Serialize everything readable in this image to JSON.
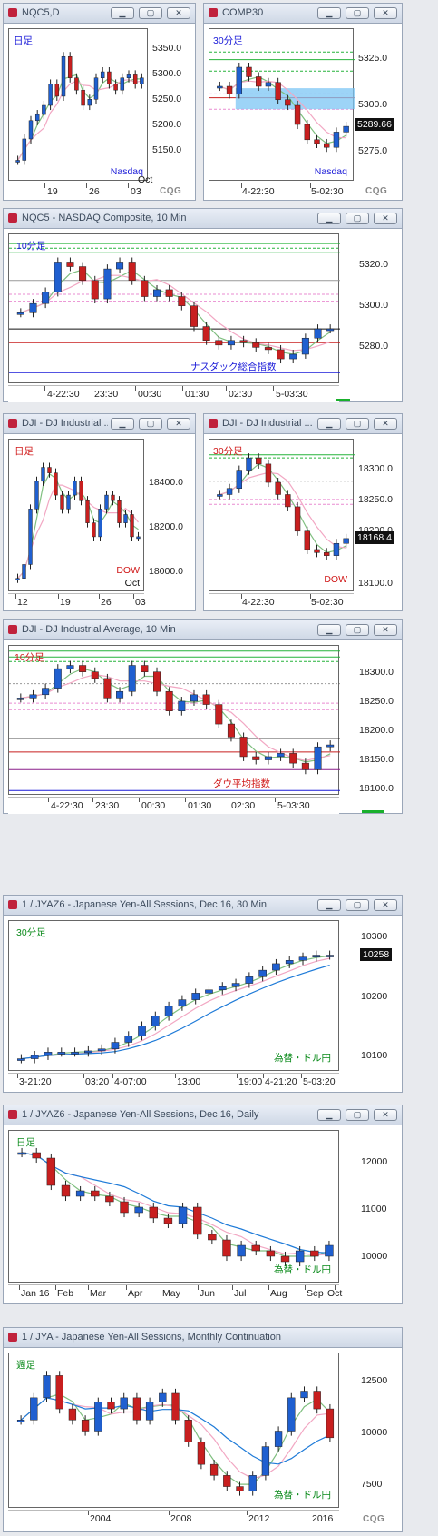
{
  "panels": [
    {
      "title": "NQC5,D",
      "tag": "日足",
      "tag_color": "#1a1ad8",
      "note": "Nasdaq",
      "note_color": "#1a1ad8",
      "note2": "Oct",
      "y_ticks": [
        "5350.0",
        "5300.0",
        "5250.0",
        "5200.0",
        "5150.0"
      ],
      "x_ticks": [
        "19",
        "26",
        "03"
      ],
      "logo": "CQG"
    },
    {
      "title": "COMP30",
      "tag": "30分足",
      "tag_color": "#1a1ad8",
      "note": "Nasdaq",
      "note_color": "#1a1ad8",
      "price": "5289.66",
      "y_ticks": [
        "5325.0",
        "5300.0",
        "5275.0"
      ],
      "x_ticks": [
        "4-22:30",
        "5-02:30"
      ],
      "logo": "CQG"
    },
    {
      "title": "NQC5 - NASDAQ Composite, 10 Min",
      "tag": "10分足",
      "tag_color": "#1a1ad8",
      "note": "ナスダック総合指数",
      "note_color": "#1a1ad8",
      "y_ticks": [
        "5320.0",
        "5300.0",
        "5280.0"
      ],
      "x_ticks": [
        "4-22:30",
        "23:30",
        "00:30",
        "01:30",
        "02:30",
        "5-03:30"
      ]
    },
    {
      "title": "DJI - DJ Industrial ...",
      "tag": "日足",
      "tag_color": "#d01818",
      "note": "DOW",
      "note_color": "#d01818",
      "note2": "Oct",
      "y_ticks": [
        "18400.0",
        "18200.0",
        "18000.0"
      ],
      "x_ticks": [
        "12",
        "19",
        "26",
        "03"
      ]
    },
    {
      "title": "DJI - DJ Industrial ...",
      "tag": "30分足",
      "tag_color": "#d01818",
      "note": "DOW",
      "note_color": "#d01818",
      "price": "18168.4",
      "y_ticks": [
        "18300.0",
        "18250.0",
        "18200.0",
        "18150.0",
        "18100.0"
      ],
      "x_ticks": [
        "4-22:30",
        "5-02:30"
      ]
    },
    {
      "title": "DJI - DJ Industrial Average, 10 Min",
      "tag": "10分足",
      "tag_color": "#d01818",
      "note": "ダウ平均指数",
      "note_color": "#d01818",
      "y_ticks": [
        "18300.0",
        "18250.0",
        "18200.0",
        "18150.0",
        "18100.0"
      ],
      "x_ticks": [
        "4-22:30",
        "23:30",
        "00:30",
        "01:30",
        "02:30",
        "5-03:30"
      ]
    },
    {
      "title": "1 / JYAZ6 - Japanese Yen-All Sessions, Dec 16, 30 Min",
      "tag": "30分足",
      "tag_color": "#0a8a1a",
      "note": "為替・ドル円",
      "note_color": "#0a8a1a",
      "price": "10258",
      "y_ticks": [
        "10300",
        "10200",
        "10100"
      ],
      "x_ticks": [
        "3-21:20",
        "03:20",
        "4-07:00",
        "13:00",
        "19:00",
        "4-21:20",
        "5-03:20"
      ]
    },
    {
      "title": "1 / JYAZ6 - Japanese Yen-All Sessions, Dec 16, Daily",
      "tag": "日足",
      "tag_color": "#0a8a1a",
      "note": "為替・ドル円",
      "note_color": "#0a8a1a",
      "y_ticks": [
        "12000",
        "11000",
        "10000"
      ],
      "x_ticks": [
        "Jan 16",
        "Feb",
        "Mar",
        "Apr",
        "May",
        "Jun",
        "Jul",
        "Aug",
        "Sep",
        "Oct"
      ]
    },
    {
      "title": "1 / JYA - Japanese Yen-All Sessions, Monthly Continuation",
      "tag": "週足",
      "tag_color": "#0a8a1a",
      "note": "為替・ドル円",
      "note_color": "#0a8a1a",
      "y_ticks": [
        "12500",
        "10000",
        "7500"
      ],
      "x_ticks": [
        "2004",
        "2008",
        "2012",
        "2016"
      ],
      "logo": "CQG"
    }
  ],
  "chart_data": [
    {
      "type": "candlestick",
      "title": "NQC5,D",
      "ylim": [
        5130,
        5380
      ],
      "series": [
        {
          "name": "candles",
          "values": [
            5165,
            5200,
            5230,
            5240,
            5255,
            5290,
            5270,
            5335,
            5300,
            5280,
            5255,
            5265,
            5300,
            5310,
            5290,
            5280,
            5300,
            5305,
            5290,
            5300
          ]
        }
      ]
    },
    {
      "type": "candlestick",
      "title": "COMP30",
      "ylim": [
        5260,
        5340
      ],
      "series": [
        {
          "name": "candles",
          "values": [
            5310,
            5306,
            5320,
            5315,
            5310,
            5312,
            5303,
            5300,
            5290,
            5282,
            5280,
            5278,
            5286,
            5289
          ]
        }
      ]
    },
    {
      "type": "candlestick",
      "title": "NQC5 10 Min",
      "ylim": [
        5265,
        5330
      ],
      "series": [
        {
          "name": "candles",
          "values": [
            5296,
            5300,
            5305,
            5318,
            5316,
            5310,
            5302,
            5315,
            5318,
            5310,
            5303,
            5306,
            5303,
            5299,
            5290,
            5284,
            5282,
            5284,
            5283,
            5281,
            5280,
            5276,
            5278,
            5285,
            5289,
            5289
          ]
        }
      ]
    },
    {
      "type": "candlestick",
      "title": "DJI Daily",
      "ylim": [
        17950,
        18500
      ],
      "series": [
        {
          "name": "candles",
          "values": [
            18000,
            18050,
            18250,
            18350,
            18400,
            18380,
            18300,
            18250,
            18300,
            18350,
            18280,
            18200,
            18150,
            18250,
            18300,
            18280,
            18200,
            18230,
            18150,
            18150
          ]
        }
      ]
    },
    {
      "type": "candlestick",
      "title": "DJI 30 Min",
      "ylim": [
        18080,
        18330
      ],
      "series": [
        {
          "name": "candles",
          "values": [
            18240,
            18250,
            18280,
            18300,
            18290,
            18260,
            18240,
            18220,
            18180,
            18150,
            18145,
            18140,
            18160,
            18168
          ]
        }
      ]
    },
    {
      "type": "candlestick",
      "title": "DJI 10 Min",
      "ylim": [
        18090,
        18320
      ],
      "series": [
        {
          "name": "candles",
          "values": [
            18240,
            18245,
            18255,
            18285,
            18290,
            18280,
            18270,
            18240,
            18250,
            18290,
            18280,
            18250,
            18220,
            18235,
            18245,
            18230,
            18200,
            18180,
            18150,
            18145,
            18150,
            18155,
            18140,
            18130,
            18165,
            18168
          ]
        }
      ]
    },
    {
      "type": "candlestick",
      "title": "JYAZ6 30 Min",
      "ylim": [
        10080,
        10310
      ],
      "series": [
        {
          "name": "candles",
          "values": [
            10100,
            10105,
            10110,
            10110,
            10110,
            10112,
            10115,
            10125,
            10135,
            10150,
            10165,
            10180,
            10190,
            10200,
            10205,
            10210,
            10215,
            10225,
            10235,
            10245,
            10250,
            10255,
            10258,
            10258
          ]
        }
      ]
    },
    {
      "type": "candlestick",
      "title": "JYAZ6 Daily",
      "ylim": [
        9500,
        12300
      ],
      "series": [
        {
          "name": "candles",
          "values": [
            11900,
            11800,
            11300,
            11100,
            11200,
            11100,
            11000,
            10800,
            10900,
            10700,
            10600,
            10900,
            10400,
            10300,
            10000,
            10200,
            10100,
            10000,
            9900,
            10100,
            10000,
            10200
          ]
        }
      ]
    },
    {
      "type": "candlestick",
      "title": "JYA Monthly",
      "ylim": [
        7000,
        14000
      ],
      "series": [
        {
          "name": "candles",
          "values": [
            11000,
            12000,
            13000,
            11500,
            11000,
            10500,
            11800,
            11500,
            12000,
            11000,
            11800,
            12200,
            11000,
            10000,
            9000,
            8500,
            8000,
            7800,
            8500,
            9800,
            10500,
            12000,
            12300,
            11500,
            10200
          ]
        }
      ]
    }
  ]
}
